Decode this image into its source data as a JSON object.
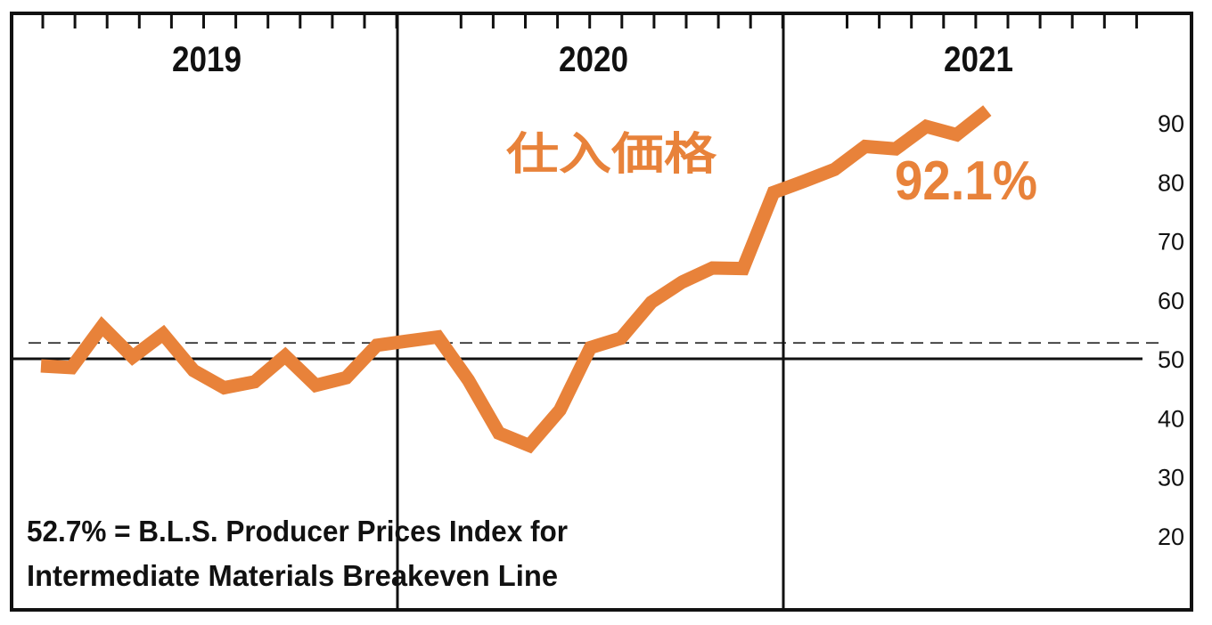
{
  "chart_data": {
    "type": "line",
    "x": [
      "2019-01",
      "2019-02",
      "2019-03",
      "2019-04",
      "2019-05",
      "2019-06",
      "2019-07",
      "2019-08",
      "2019-09",
      "2019-10",
      "2019-11",
      "2019-12",
      "2020-01",
      "2020-02",
      "2020-03",
      "2020-04",
      "2020-05",
      "2020-06",
      "2020-07",
      "2020-08",
      "2020-09",
      "2020-10",
      "2020-11",
      "2020-12",
      "2021-01",
      "2021-02",
      "2021-03",
      "2021-04",
      "2021-05",
      "2021-06",
      "2021-07",
      "2021-08"
    ],
    "series": [
      {
        "name": "仕入価格",
        "color": "#e8823a",
        "values": [
          48.8,
          48.5,
          55.5,
          50.3,
          54.2,
          48.0,
          45.1,
          46.1,
          50.5,
          45.5,
          46.8,
          52.3,
          53.0,
          53.7,
          46.4,
          37.4,
          35.3,
          41.3,
          51.9,
          53.5,
          59.6,
          63.0,
          65.4,
          65.3,
          78.2,
          80.1,
          82.1,
          86.0,
          85.6,
          89.4,
          88.0,
          92.1
        ]
      }
    ],
    "end_value_label": "92.1%",
    "year_labels": [
      "2019",
      "2020",
      "2021"
    ],
    "y_ticks": [
      90,
      80,
      70,
      60,
      50,
      40,
      30,
      20
    ],
    "ylim": [
      10,
      100
    ],
    "reference_lines": [
      {
        "value": 52.7,
        "style": "dashed"
      },
      {
        "value": 50,
        "style": "solid"
      }
    ],
    "annotation": [
      "52.7% = B.L.S. Producer Prices Index for",
      "Intermediate Materials Breakeven Line"
    ],
    "grid": false,
    "legend": "none"
  }
}
